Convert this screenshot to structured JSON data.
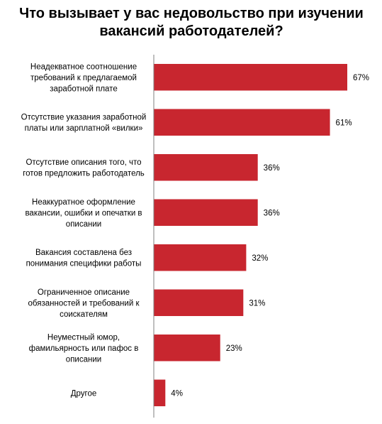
{
  "chart_data": {
    "type": "bar",
    "orientation": "horizontal",
    "title": "Что вызывает у вас недовольство при изучении вакансий работодателей?",
    "categories": [
      [
        "Неадекватное соотношение",
        "требований к предлагаемой",
        "заработной плате"
      ],
      [
        "Отсутствие указания заработной",
        "платы или зарплатной «вилки»"
      ],
      [
        "Отсутствие описания того, что",
        "готов предложить работодатель"
      ],
      [
        "Неаккуратное оформление",
        "вакансии, ошибки и опечатки в",
        "описании"
      ],
      [
        "Вакансия составлена без",
        "понимания специфики работы"
      ],
      [
        "Ограниченное описание",
        "обязанностей и требований к",
        "соискателям"
      ],
      [
        "Неуместный юмор,",
        "фамильярность или пафос в",
        "описании"
      ],
      [
        "Другое"
      ]
    ],
    "values": [
      67,
      61,
      36,
      36,
      32,
      31,
      23,
      4
    ],
    "value_labels": [
      "67%",
      "61%",
      "36%",
      "36%",
      "32%",
      "31%",
      "23%",
      "4%"
    ],
    "unit": "%",
    "xlim": [
      0,
      70
    ],
    "bar_color": "#c8262f",
    "axis_color": "#7f7f7f",
    "grid": false,
    "legend": "none"
  }
}
